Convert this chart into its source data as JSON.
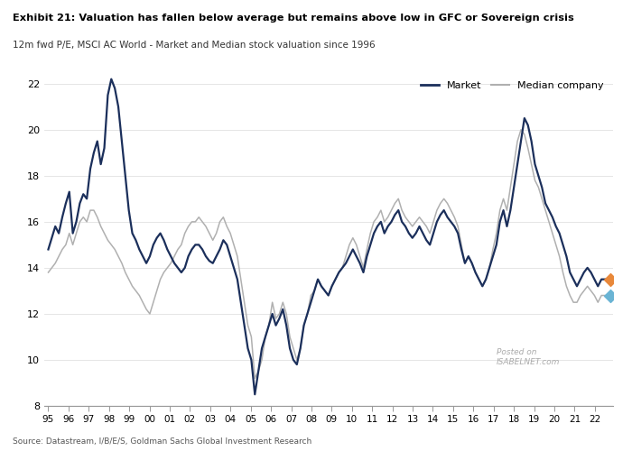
{
  "title_bold": "Exhibit 21: Valuation has fallen below average but remains above low in GFC or Sovereign crisis",
  "title_sub": "12m fwd P/E, MSCI AC World - Market and Median stock valuation since 1996",
  "source": "Source: Datastream, I/B/E/S, Goldman Sachs Global Investment Research",
  "ylim": [
    8,
    22.5
  ],
  "yticks": [
    8,
    10,
    12,
    14,
    16,
    18,
    20,
    22
  ],
  "xtick_labels": [
    "95",
    "96",
    "97",
    "98",
    "99",
    "00",
    "01",
    "02",
    "03",
    "04",
    "05",
    "06",
    "07",
    "08",
    "09",
    "10",
    "11",
    "12",
    "13",
    "14",
    "15",
    "16",
    "17",
    "18",
    "19",
    "20",
    "21",
    "22"
  ],
  "market_color": "#1b2f5b",
  "median_color": "#b0b0b0",
  "marker_orange": "#e8883a",
  "marker_blue": "#6ab4d4",
  "background_color": "#ffffff",
  "market_lw": 1.6,
  "median_lw": 1.1,
  "endpoint_market_orange": 13.5,
  "endpoint_median_blue": 12.8,
  "x_start_year": 1995.0,
  "x_end_year": 2022.75,
  "market_data": [
    14.8,
    15.3,
    15.8,
    15.5,
    16.2,
    16.8,
    17.3,
    15.5,
    16.0,
    16.8,
    17.2,
    17.0,
    18.3,
    19.0,
    19.5,
    18.5,
    19.2,
    21.5,
    22.2,
    21.8,
    21.0,
    19.5,
    18.0,
    16.5,
    15.5,
    15.2,
    14.8,
    14.5,
    14.2,
    14.5,
    15.0,
    15.3,
    15.5,
    15.2,
    14.8,
    14.5,
    14.2,
    14.0,
    13.8,
    14.0,
    14.5,
    14.8,
    15.0,
    15.0,
    14.8,
    14.5,
    14.3,
    14.2,
    14.5,
    14.8,
    15.2,
    15.0,
    14.5,
    14.0,
    13.5,
    12.5,
    11.5,
    10.5,
    10.0,
    8.5,
    9.5,
    10.5,
    11.0,
    11.5,
    12.0,
    11.5,
    11.8,
    12.2,
    11.5,
    10.5,
    10.0,
    9.8,
    10.5,
    11.5,
    12.0,
    12.5,
    13.0,
    13.5,
    13.2,
    13.0,
    12.8,
    13.2,
    13.5,
    13.8,
    14.0,
    14.2,
    14.5,
    14.8,
    14.5,
    14.2,
    13.8,
    14.5,
    15.0,
    15.5,
    15.8,
    16.0,
    15.5,
    15.8,
    16.0,
    16.3,
    16.5,
    16.0,
    15.8,
    15.5,
    15.3,
    15.5,
    15.8,
    15.5,
    15.2,
    15.0,
    15.5,
    16.0,
    16.3,
    16.5,
    16.2,
    16.0,
    15.8,
    15.5,
    14.8,
    14.2,
    14.5,
    14.2,
    13.8,
    13.5,
    13.2,
    13.5,
    14.0,
    14.5,
    15.0,
    16.0,
    16.5,
    15.8,
    16.5,
    17.5,
    18.5,
    19.5,
    20.5,
    20.2,
    19.5,
    18.5,
    18.0,
    17.5,
    16.8,
    16.5,
    16.2,
    15.8,
    15.5,
    15.0,
    14.5,
    13.8,
    13.5,
    13.2,
    13.5,
    13.8,
    14.0,
    13.8,
    13.5,
    13.2,
    13.5,
    13.5
  ],
  "median_data": [
    13.8,
    14.0,
    14.2,
    14.5,
    14.8,
    15.0,
    15.5,
    15.0,
    15.5,
    16.0,
    16.2,
    16.0,
    16.5,
    16.5,
    16.2,
    15.8,
    15.5,
    15.2,
    15.0,
    14.8,
    14.5,
    14.2,
    13.8,
    13.5,
    13.2,
    13.0,
    12.8,
    12.5,
    12.2,
    12.0,
    12.5,
    13.0,
    13.5,
    13.8,
    14.0,
    14.2,
    14.5,
    14.8,
    15.0,
    15.5,
    15.8,
    16.0,
    16.0,
    16.2,
    16.0,
    15.8,
    15.5,
    15.2,
    15.5,
    16.0,
    16.2,
    15.8,
    15.5,
    15.0,
    14.5,
    13.5,
    12.5,
    11.5,
    11.0,
    9.2,
    9.5,
    10.0,
    11.0,
    11.5,
    12.5,
    11.8,
    12.0,
    12.5,
    12.0,
    11.0,
    10.5,
    10.0,
    10.5,
    11.5,
    12.0,
    12.8,
    13.0,
    13.5,
    13.2,
    13.0,
    12.8,
    13.2,
    13.5,
    13.8,
    14.0,
    14.5,
    15.0,
    15.3,
    15.0,
    14.5,
    14.0,
    14.8,
    15.5,
    16.0,
    16.2,
    16.5,
    16.0,
    16.2,
    16.5,
    16.8,
    17.0,
    16.5,
    16.2,
    16.0,
    15.8,
    16.0,
    16.2,
    16.0,
    15.8,
    15.5,
    16.0,
    16.5,
    16.8,
    17.0,
    16.8,
    16.5,
    16.2,
    15.8,
    15.0,
    14.2,
    14.5,
    14.2,
    13.8,
    13.5,
    13.2,
    13.5,
    14.0,
    14.8,
    15.5,
    16.5,
    17.0,
    16.5,
    17.5,
    18.5,
    19.5,
    20.0,
    19.8,
    19.2,
    18.5,
    17.8,
    17.5,
    17.0,
    16.5,
    16.0,
    15.5,
    15.0,
    14.5,
    13.8,
    13.2,
    12.8,
    12.5,
    12.5,
    12.8,
    13.0,
    13.2,
    13.0,
    12.8,
    12.5,
    12.8,
    12.8
  ]
}
